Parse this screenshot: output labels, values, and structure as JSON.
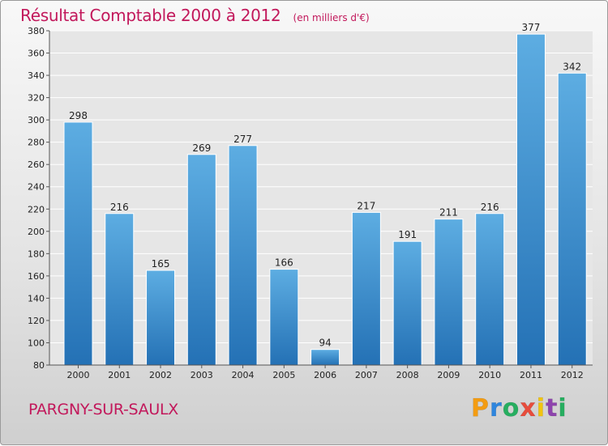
{
  "header": {
    "title": "Résultat Comptable 2000 à 2012",
    "subtitle": "(en milliers d'€)"
  },
  "footer": {
    "commune": "PARGNY-SUR-SAULX",
    "logo": {
      "letters": [
        "P",
        "r",
        "o",
        "x",
        "i",
        "t",
        "i"
      ],
      "colors": [
        "#f39c12",
        "#2e86de",
        "#27ae60",
        "#e74c3c",
        "#f1c40f",
        "#8e44ad",
        "#27ae60"
      ]
    }
  },
  "colors": {
    "bar_light": "#5dade2",
    "bar_dark": "#2471b5",
    "title": "#c2185b"
  },
  "chart_data": {
    "type": "bar",
    "categories": [
      "2000",
      "2001",
      "2002",
      "2003",
      "2004",
      "2005",
      "2006",
      "2007",
      "2008",
      "2009",
      "2010",
      "2011",
      "2012"
    ],
    "values": [
      298,
      216,
      165,
      269,
      277,
      166,
      94,
      217,
      191,
      211,
      216,
      377,
      342
    ],
    "ylim": [
      80,
      380
    ],
    "yticks": [
      80,
      100,
      120,
      140,
      160,
      180,
      200,
      220,
      240,
      260,
      280,
      300,
      320,
      340,
      360,
      380
    ],
    "grid": true
  }
}
